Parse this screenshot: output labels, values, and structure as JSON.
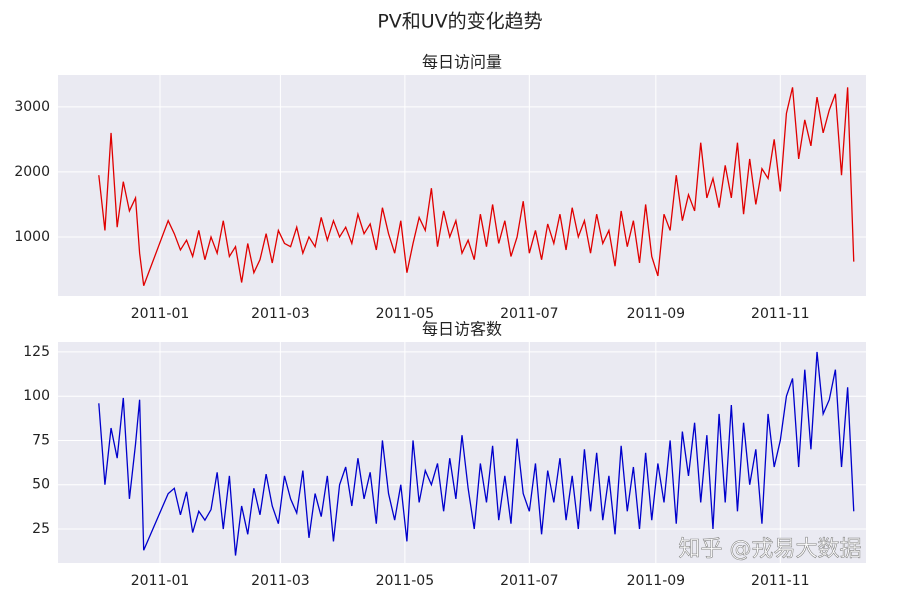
{
  "title": "PV和UV的变化趋势",
  "watermark": "知乎 @戎易大数据",
  "chart_data": [
    {
      "type": "line",
      "title": "每日访问量",
      "color": "#e00000",
      "grid": true,
      "xlim": [
        -50,
        346
      ],
      "ylim": [
        92,
        3490
      ],
      "xticks": [
        {
          "value": 0,
          "label": "2011-01"
        },
        {
          "value": 59,
          "label": "2011-03"
        },
        {
          "value": 120,
          "label": "2011-05"
        },
        {
          "value": 181,
          "label": "2011-07"
        },
        {
          "value": 243,
          "label": "2011-09"
        },
        {
          "value": 304,
          "label": "2011-11"
        }
      ],
      "yticks": [
        1000,
        2000,
        3000
      ],
      "x": [
        -30,
        -27,
        -24,
        -21,
        -18,
        -15,
        -12,
        -10,
        -8,
        4,
        7,
        10,
        13,
        16,
        19,
        22,
        25,
        28,
        31,
        34,
        37,
        40,
        43,
        46,
        49,
        52,
        55,
        58,
        61,
        64,
        67,
        70,
        73,
        76,
        79,
        82,
        85,
        88,
        91,
        94,
        97,
        100,
        103,
        106,
        109,
        112,
        115,
        118,
        121,
        124,
        127,
        130,
        133,
        136,
        139,
        142,
        145,
        148,
        151,
        154,
        157,
        160,
        163,
        166,
        169,
        172,
        175,
        178,
        181,
        184,
        187,
        190,
        193,
        196,
        199,
        202,
        205,
        208,
        211,
        214,
        217,
        220,
        223,
        226,
        229,
        232,
        235,
        238,
        241,
        244,
        247,
        250,
        253,
        256,
        259,
        262,
        265,
        268,
        271,
        274,
        277,
        280,
        283,
        286,
        289,
        292,
        295,
        298,
        301,
        304,
        307,
        310,
        313,
        316,
        319,
        322,
        325,
        328,
        331,
        334,
        337,
        340
      ],
      "values": [
        1950,
        1100,
        2600,
        1150,
        1850,
        1400,
        1600,
        750,
        250,
        1250,
        1050,
        800,
        950,
        700,
        1100,
        650,
        1000,
        750,
        1250,
        700,
        850,
        300,
        900,
        450,
        650,
        1050,
        600,
        1100,
        900,
        850,
        1150,
        750,
        1000,
        850,
        1300,
        950,
        1250,
        1000,
        1150,
        900,
        1350,
        1050,
        1200,
        800,
        1450,
        1050,
        750,
        1250,
        450,
        900,
        1300,
        1100,
        1750,
        850,
        1400,
        1000,
        1250,
        750,
        950,
        650,
        1350,
        850,
        1500,
        900,
        1250,
        700,
        1000,
        1550,
        750,
        1100,
        650,
        1200,
        900,
        1350,
        800,
        1450,
        1000,
        1250,
        750,
        1350,
        900,
        1100,
        550,
        1400,
        850,
        1250,
        600,
        1500,
        700,
        400,
        1350,
        1100,
        1950,
        1250,
        1650,
        1400,
        2450,
        1600,
        1900,
        1450,
        2100,
        1600,
        2450,
        1350,
        2200,
        1500,
        2050,
        1900,
        2500,
        1700,
        2900,
        3300,
        2200,
        2800,
        2400,
        3150,
        2600,
        2950,
        3200,
        1950,
        3300,
        620
      ]
    },
    {
      "type": "line",
      "title": "每日访客数",
      "color": "#0000cc",
      "grid": true,
      "xlim": [
        -50,
        346
      ],
      "ylim": [
        5.8,
        130.6
      ],
      "xticks": [
        {
          "value": 0,
          "label": "2011-01"
        },
        {
          "value": 59,
          "label": "2011-03"
        },
        {
          "value": 120,
          "label": "2011-05"
        },
        {
          "value": 181,
          "label": "2011-07"
        },
        {
          "value": 243,
          "label": "2011-09"
        },
        {
          "value": 304,
          "label": "2011-11"
        }
      ],
      "yticks": [
        25,
        50,
        75,
        100,
        125
      ],
      "x": [
        -30,
        -27,
        -24,
        -21,
        -18,
        -15,
        -12,
        -10,
        -8,
        4,
        7,
        10,
        13,
        16,
        19,
        22,
        25,
        28,
        31,
        34,
        37,
        40,
        43,
        46,
        49,
        52,
        55,
        58,
        61,
        64,
        67,
        70,
        73,
        76,
        79,
        82,
        85,
        88,
        91,
        94,
        97,
        100,
        103,
        106,
        109,
        112,
        115,
        118,
        121,
        124,
        127,
        130,
        133,
        136,
        139,
        142,
        145,
        148,
        151,
        154,
        157,
        160,
        163,
        166,
        169,
        172,
        175,
        178,
        181,
        184,
        187,
        190,
        193,
        196,
        199,
        202,
        205,
        208,
        211,
        214,
        217,
        220,
        223,
        226,
        229,
        232,
        235,
        238,
        241,
        244,
        247,
        250,
        253,
        256,
        259,
        262,
        265,
        268,
        271,
        274,
        277,
        280,
        283,
        286,
        289,
        292,
        295,
        298,
        301,
        304,
        307,
        310,
        313,
        316,
        319,
        322,
        325,
        328,
        331,
        334,
        337,
        340
      ],
      "values": [
        96,
        50,
        82,
        65,
        99,
        42,
        73,
        98,
        13,
        45,
        48,
        33,
        46,
        23,
        35,
        30,
        36,
        57,
        25,
        55,
        10,
        38,
        22,
        48,
        33,
        56,
        38,
        28,
        55,
        42,
        34,
        58,
        20,
        45,
        32,
        55,
        18,
        50,
        60,
        38,
        65,
        42,
        57,
        28,
        75,
        45,
        30,
        50,
        18,
        75,
        40,
        58,
        50,
        62,
        35,
        65,
        42,
        78,
        48,
        25,
        62,
        40,
        72,
        30,
        55,
        28,
        76,
        45,
        35,
        62,
        22,
        58,
        40,
        65,
        30,
        55,
        25,
        70,
        35,
        68,
        30,
        55,
        22,
        72,
        35,
        60,
        25,
        68,
        30,
        62,
        40,
        75,
        28,
        80,
        55,
        85,
        40,
        78,
        25,
        90,
        40,
        95,
        35,
        85,
        50,
        70,
        28,
        90,
        60,
        75,
        100,
        110,
        60,
        115,
        70,
        125,
        90,
        98,
        115,
        60,
        105,
        35
      ]
    }
  ]
}
